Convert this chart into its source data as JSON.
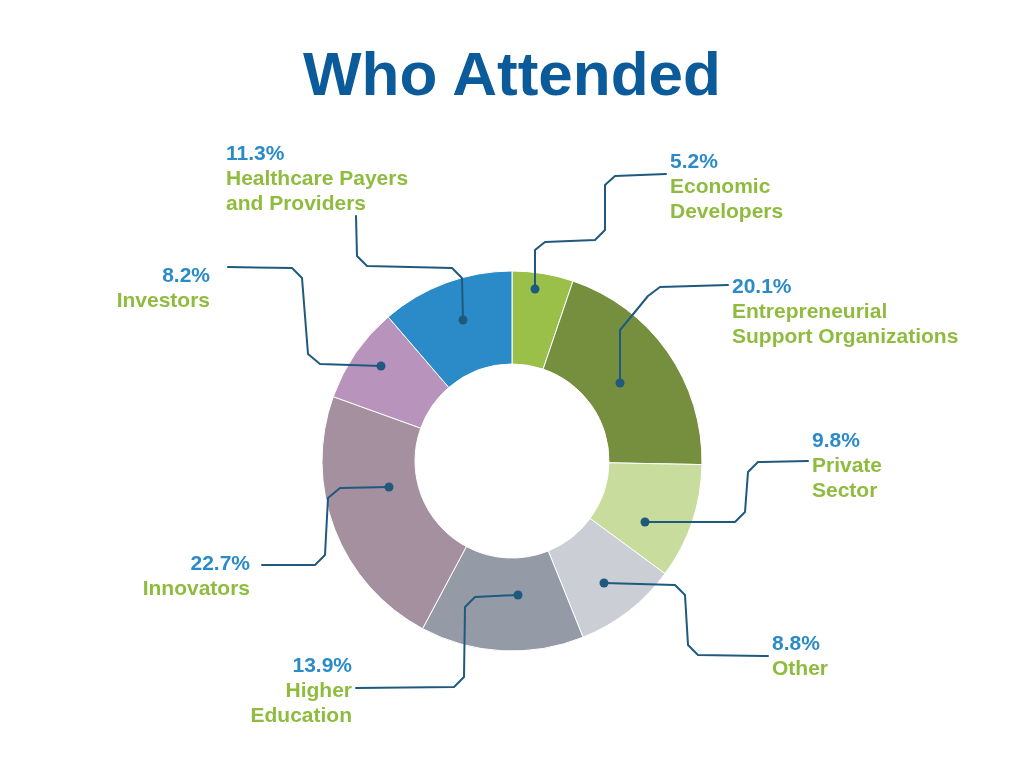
{
  "chart_data": {
    "type": "donut",
    "title": "Who Attended",
    "categories": [
      "Economic Developers",
      "Entrepreneurial Support Organizations",
      "Private Sector",
      "Other",
      "Higher Education",
      "Innovators",
      "Investors",
      "Healthcare Payers and Providers"
    ],
    "values": [
      5.2,
      20.1,
      9.8,
      8.8,
      13.9,
      22.7,
      8.2,
      11.3
    ],
    "colors": [
      "#9bc04a",
      "#768f3e",
      "#c8dc9e",
      "#cbced4",
      "#959ba6",
      "#a4909f",
      "#b894bd",
      "#2b8bc8"
    ],
    "value_labels": [
      "5.2%",
      "20.1%",
      "9.8%",
      "8.8%",
      "13.9%",
      "22.7%",
      "8.2%",
      "11.3%"
    ]
  }
}
